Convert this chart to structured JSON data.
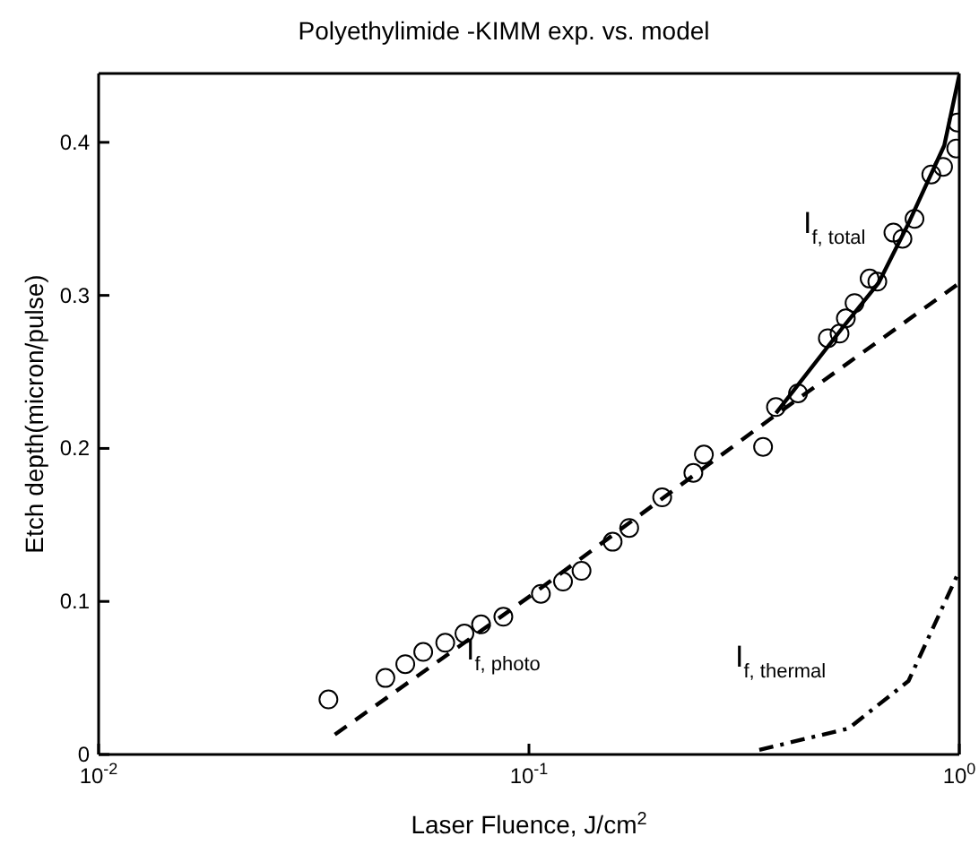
{
  "chart_data": {
    "type": "line",
    "title": "Polyethylimide -KIMM exp. vs. model",
    "xlabel": "Laser Fluence, J/cm$^{2}$",
    "ylabel": "Etch depth(micron/pulse)",
    "log": "x",
    "xlim": [
      0.01,
      1
    ],
    "xticks": [
      {
        "value": 0.01,
        "label": "10$^{-2}$"
      },
      {
        "value": 0.1,
        "label": "10$^{-1}$"
      },
      {
        "value": 1,
        "label": "10$^{0}$"
      }
    ],
    "ylim": [
      0,
      0.445
    ],
    "yticks": [
      0,
      0.1,
      0.2,
      0.3,
      0.4
    ],
    "grid": false,
    "legend": false,
    "series": [
      {
        "type": "scatter",
        "marker": "circle",
        "color": "#000000",
        "x": [
          0.0342,
          0.0464,
          0.0516,
          0.0568,
          0.0639,
          0.0708,
          0.0774,
          0.0872,
          0.1066,
          0.12,
          0.1325,
          0.1565,
          0.171,
          0.204,
          0.241,
          0.255,
          0.35,
          0.375,
          0.422,
          0.495,
          0.527,
          0.545,
          0.571,
          0.619,
          0.645,
          0.703,
          0.738,
          0.787,
          0.861,
          0.917,
          0.984,
          0.99
        ],
        "values": [
          0.036,
          0.05,
          0.059,
          0.067,
          0.073,
          0.079,
          0.085,
          0.09,
          0.105,
          0.113,
          0.12,
          0.139,
          0.148,
          0.168,
          0.184,
          0.196,
          0.201,
          0.227,
          0.236,
          0.272,
          0.275,
          0.285,
          0.295,
          0.311,
          0.309,
          0.341,
          0.337,
          0.35,
          0.379,
          0.384,
          0.396,
          0.413
        ]
      },
      {
        "name": "I$_{f, photo}$",
        "line_style": "dashed",
        "marker": "none",
        "color": "#000000",
        "x": [
          0.0354,
          0.1,
          0.375,
          1.0
        ],
        "values": [
          0.013,
          0.103,
          0.222,
          0.308
        ]
      },
      {
        "name": "I$_{f, total}$",
        "line_style": "solid",
        "marker": "none",
        "color": "#000000",
        "x": [
          0.375,
          0.536,
          0.649,
          0.762,
          0.923,
          1.0
        ],
        "values": [
          0.223,
          0.279,
          0.308,
          0.347,
          0.398,
          0.444
        ]
      },
      {
        "name": "I$_{f, thermal}$",
        "line_style": "dashdot",
        "marker": "none",
        "color": "#000000",
        "x": [
          0.343,
          0.553,
          0.762,
          1.0
        ],
        "values": [
          0.003,
          0.017,
          0.048,
          0.12
        ]
      }
    ]
  }
}
